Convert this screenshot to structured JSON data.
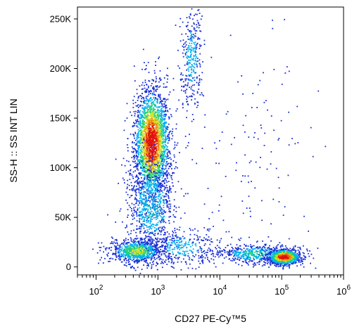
{
  "chart_data": {
    "type": "scatter",
    "subtype": "flow-cytometry-density-dot-plot",
    "xlabel": "CD27 PE-Cy™5",
    "ylabel": "SS-H :: SS INT LIN",
    "x_scale": "log",
    "y_scale": "linear",
    "xlim": [
      50,
      1000000
    ],
    "ylim": [
      -8000,
      262000
    ],
    "x_ticks": [
      {
        "value": 100,
        "base": "10",
        "exp": "2"
      },
      {
        "value": 1000,
        "base": "10",
        "exp": "3"
      },
      {
        "value": 10000,
        "base": "10",
        "exp": "4"
      },
      {
        "value": 100000,
        "base": "10",
        "exp": "5"
      },
      {
        "value": 1000000,
        "base": "10",
        "exp": "6"
      }
    ],
    "y_ticks": [
      {
        "value": 0,
        "label": "0"
      },
      {
        "value": 50000,
        "label": "50K"
      },
      {
        "value": 100000,
        "label": "100K"
      },
      {
        "value": 150000,
        "label": "150K"
      },
      {
        "value": 200000,
        "label": "200K"
      },
      {
        "value": 250000,
        "label": "250K"
      }
    ],
    "grid": false,
    "colormap": [
      "#1a2fd6",
      "#00b0f0",
      "#22d27a",
      "#d8e020",
      "#f08a10",
      "#e01010"
    ],
    "populations": [
      {
        "x": 800,
        "y": 125000,
        "sx": 0.14,
        "sy": 27000,
        "n": 2600,
        "peak": 1.0
      },
      {
        "x": 780,
        "y": 60000,
        "sx": 0.2,
        "sy": 25000,
        "n": 800,
        "peak": 0.35
      },
      {
        "x": 450,
        "y": 16000,
        "sx": 0.22,
        "sy": 6000,
        "n": 800,
        "peak": 0.55
      },
      {
        "x": 3500,
        "y": 210000,
        "sx": 0.09,
        "sy": 28000,
        "n": 320,
        "peak": 0.3
      },
      {
        "x": 2500,
        "y": 20000,
        "sx": 0.3,
        "sy": 10000,
        "n": 320,
        "peak": 0.3
      },
      {
        "x": 40000,
        "y": 13000,
        "sx": 0.35,
        "sy": 5000,
        "n": 550,
        "peak": 0.4
      },
      {
        "x": 110000,
        "y": 10000,
        "sx": 0.13,
        "sy": 4000,
        "n": 950,
        "peak": 1.0
      },
      {
        "x": 30000,
        "y": 100000,
        "sx": 0.5,
        "sy": 60000,
        "n": 130,
        "peak": 0.05
      }
    ]
  }
}
